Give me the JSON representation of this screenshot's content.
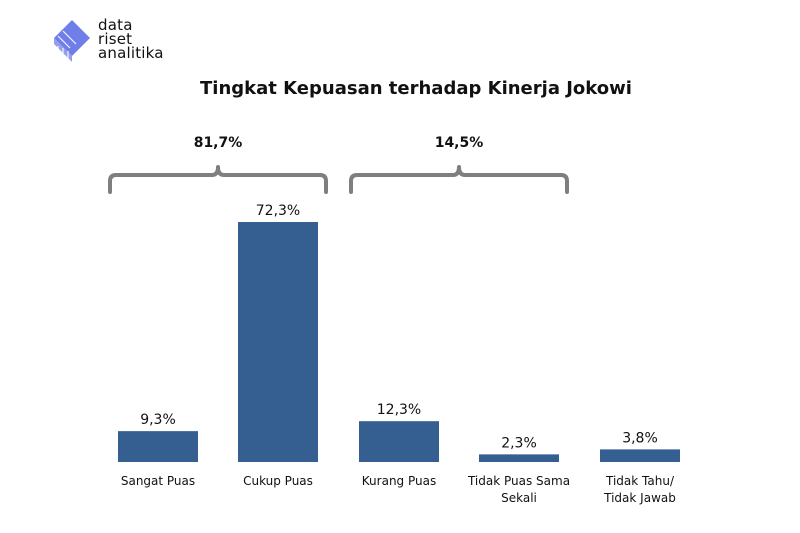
{
  "logo": {
    "lines": [
      "data",
      "riset",
      "analitika"
    ]
  },
  "colors": {
    "bar": "#365f91",
    "bracket": "#7f7f7f",
    "logo": "#6f7ee8"
  },
  "chart_data": {
    "type": "bar",
    "title": "Tingkat Kepuasan terhadap Kinerja Jokowi",
    "xlabel": "",
    "ylabel": "",
    "ylim": [
      0,
      80
    ],
    "unit": "%",
    "grid": false,
    "categories": [
      [
        "Sangat Puas"
      ],
      [
        "Cukup Puas"
      ],
      [
        "Kurang Puas"
      ],
      [
        "Tidak Puas Sama",
        "Sekali"
      ],
      [
        "Tidak Tahu/",
        "Tidak Jawab"
      ]
    ],
    "values": [
      9.3,
      72.3,
      12.3,
      2.3,
      3.8
    ],
    "value_labels": [
      "9,3%",
      "72,3%",
      "12,3%",
      "2,3%",
      "3,8%"
    ],
    "groups": [
      {
        "label": "81,7%",
        "from": 0,
        "to": 1
      },
      {
        "label": "14,5%",
        "from": 2,
        "to": 3
      }
    ]
  }
}
